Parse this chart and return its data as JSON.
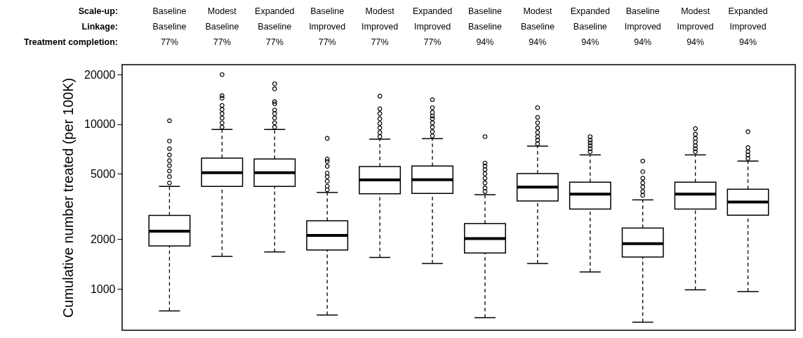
{
  "chart_data": {
    "type": "box",
    "ylabel": "Cumulative number treated (per 100K)",
    "annotations": [
      "Scale-up:",
      "Linkage:",
      "Treatment completion:"
    ],
    "categories": [
      "Baseline\nBaseline\n77%",
      "Modest\nBaseline\n77%",
      "Expanded\nBaseline\n77%",
      "Baseline\nImproved\n77%",
      "Modest\nImproved\n77%",
      "Expanded\nImproved\n77%",
      "Baseline\nBaseline\n94%",
      "Modest\nBaseline\n94%",
      "Expanded\nBaseline\n94%",
      "Baseline\nImproved\n94%",
      "Modest\nImproved\n94%",
      "Expanded\nImproved\n94%"
    ],
    "boxes": [
      {
        "low": 734,
        "q1": 1820,
        "median": 2240,
        "q3": 2790,
        "high": 4190,
        "outliers": [
          4400,
          4800,
          5200,
          5600,
          6000,
          6500,
          7100,
          7900,
          10500
        ]
      },
      {
        "low": 1575,
        "q1": 4190,
        "median": 5080,
        "q3": 6230,
        "high": 9290,
        "outliers": [
          9600,
          10200,
          10900,
          11600,
          12300,
          13000,
          14400,
          14900,
          20000
        ]
      },
      {
        "low": 1675,
        "q1": 4190,
        "median": 5080,
        "q3": 6140,
        "high": 9290,
        "outliers": [
          9600,
          10200,
          10900,
          11600,
          12200,
          13300,
          13700,
          16400,
          17600
        ]
      },
      {
        "low": 693,
        "q1": 1720,
        "median": 2110,
        "q3": 2590,
        "high": 3850,
        "outliers": [
          4000,
          4200,
          4500,
          4800,
          5050,
          5550,
          5940,
          6140,
          8200
        ]
      },
      {
        "low": 1550,
        "q1": 3780,
        "median": 4590,
        "q3": 5530,
        "high": 8110,
        "outliers": [
          8400,
          8900,
          9500,
          10100,
          10800,
          11600,
          12400,
          14800
        ]
      },
      {
        "low": 1425,
        "q1": 3800,
        "median": 4600,
        "q3": 5570,
        "high": 8170,
        "outliers": [
          8500,
          9000,
          9600,
          10200,
          10800,
          11200,
          11800,
          12600,
          14100
        ]
      },
      {
        "low": 668,
        "q1": 1650,
        "median": 2020,
        "q3": 2490,
        "high": 3730,
        "outliers": [
          3900,
          4100,
          4400,
          4700,
          5000,
          5300,
          5570,
          5810,
          8400
        ]
      },
      {
        "low": 1425,
        "q1": 3420,
        "median": 4150,
        "q3": 5010,
        "high": 7360,
        "outliers": [
          7600,
          8000,
          8400,
          8900,
          9500,
          10200,
          11000,
          12600
        ]
      },
      {
        "low": 1266,
        "q1": 3055,
        "median": 3760,
        "q3": 4440,
        "high": 6510,
        "outliers": [
          6800,
          7100,
          7400,
          7700,
          8000,
          8400
        ]
      },
      {
        "low": 627,
        "q1": 1560,
        "median": 1880,
        "q3": 2340,
        "high": 3470,
        "outliers": [
          3700,
          3900,
          4150,
          4400,
          4700,
          5150,
          5970
        ]
      },
      {
        "low": 986,
        "q1": 3055,
        "median": 3760,
        "q3": 4440,
        "high": 6510,
        "outliers": [
          6800,
          7100,
          7400,
          7800,
          8200,
          8700,
          9400
        ]
      },
      {
        "low": 962,
        "q1": 2800,
        "median": 3370,
        "q3": 4030,
        "high": 5970,
        "outliers": [
          6200,
          6500,
          6800,
          7200,
          9000
        ]
      }
    ],
    "ylim": [
      560,
      23000
    ],
    "yticks": [
      1000,
      2000,
      5000,
      10000,
      20000
    ],
    "log": true,
    "grid": false
  }
}
